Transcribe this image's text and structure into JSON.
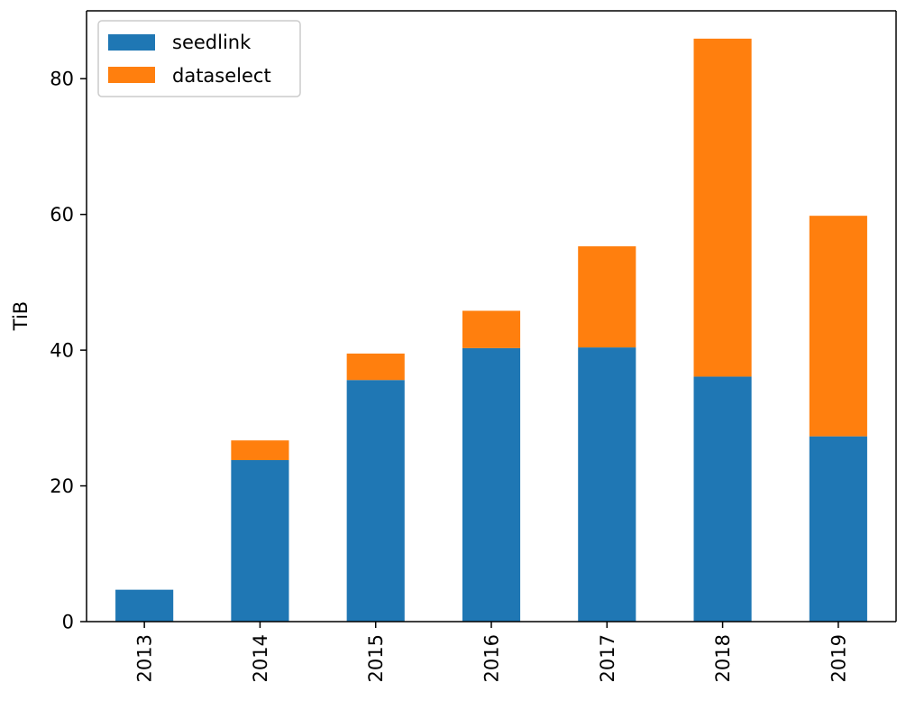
{
  "chart_data": {
    "type": "bar",
    "stacked": true,
    "categories": [
      "2013",
      "2014",
      "2015",
      "2016",
      "2017",
      "2018",
      "2019"
    ],
    "series": [
      {
        "name": "seedlink",
        "color": "#1f77b4",
        "values": [
          4.7,
          23.8,
          35.6,
          40.3,
          40.4,
          36.1,
          27.3
        ]
      },
      {
        "name": "dataselect",
        "color": "#ff7f0e",
        "values": [
          0.0,
          2.9,
          3.9,
          5.5,
          14.9,
          49.8,
          32.5
        ]
      }
    ],
    "title": "",
    "xlabel": "",
    "ylabel": "TiB",
    "ylim": [
      0,
      90
    ],
    "yticks": [
      0,
      20,
      40,
      60,
      80
    ],
    "grid": false,
    "legend": "top-left"
  }
}
